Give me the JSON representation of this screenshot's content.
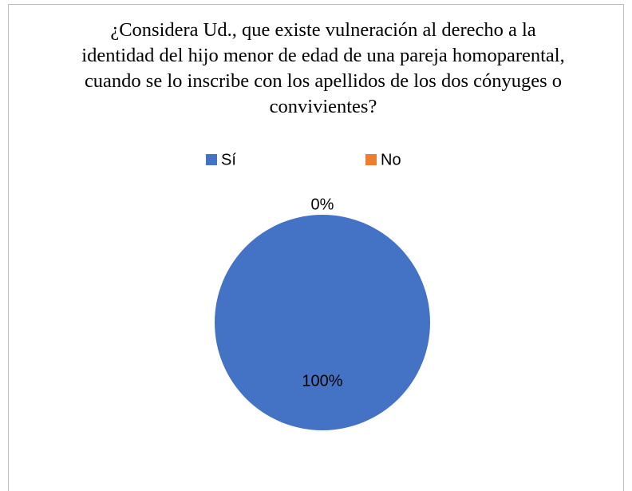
{
  "chart_data": {
    "type": "pie",
    "title": "¿Considera Ud., que existe vulneración al derecho a la identidad del hijo menor de edad de una pareja homoparental, cuando se lo inscribe con los apellidos de los dos cónyuges o convivientes?",
    "categories": [
      "Sí",
      "No"
    ],
    "values": [
      100,
      0
    ],
    "value_labels": [
      "100%",
      "0%"
    ],
    "colors": [
      "#4472c4",
      "#ed7d31"
    ],
    "legend": "top"
  }
}
